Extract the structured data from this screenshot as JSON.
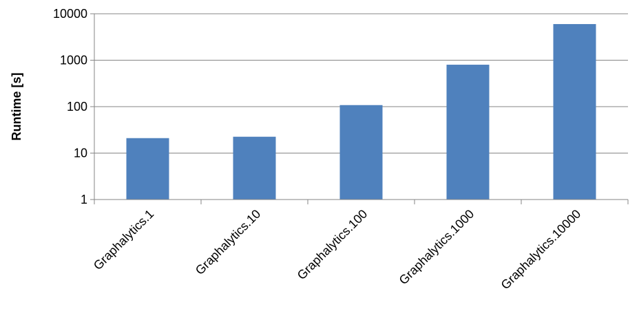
{
  "chart_data": {
    "type": "bar",
    "title": "",
    "xlabel": "",
    "ylabel": "Runtime [s]",
    "yscale": "log",
    "ylim": [
      1,
      10000
    ],
    "yticks": [
      {
        "value": 1,
        "label": "1"
      },
      {
        "value": 10,
        "label": "10"
      },
      {
        "value": 100,
        "label": "100"
      },
      {
        "value": 1000,
        "label": "1000"
      },
      {
        "value": 10000,
        "label": "10000"
      }
    ],
    "categories": [
      "Graphalytics.1",
      "Graphalytics.10",
      "Graphalytics.100",
      "Graphalytics.1000",
      "Graphalytics.10000"
    ],
    "values": [
      21,
      22.5,
      108,
      800,
      6000
    ],
    "grid": true,
    "legend": "none",
    "colors": {
      "bar": "#4f81bd",
      "grid": "#868686",
      "axis": "#868686"
    }
  }
}
